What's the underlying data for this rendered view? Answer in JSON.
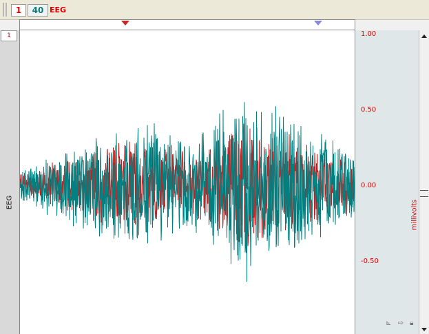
{
  "toolbar": {
    "tab_one": "1",
    "tab_forty": "40",
    "title": "EEG"
  },
  "channel": {
    "index": "1",
    "name": "EEG"
  },
  "scale": {
    "ticks": [
      "1.00",
      "0.50",
      "0.00",
      "-0.50"
    ],
    "units": "millivolts"
  },
  "colors": {
    "trace_primary": "#008080",
    "trace_secondary": "#d11a1a",
    "scale_text": "#e00000",
    "panel_bg": "#dfe7e8"
  },
  "icons": [
    "axis-icon",
    "arrow-icon",
    "lock-icon"
  ]
}
